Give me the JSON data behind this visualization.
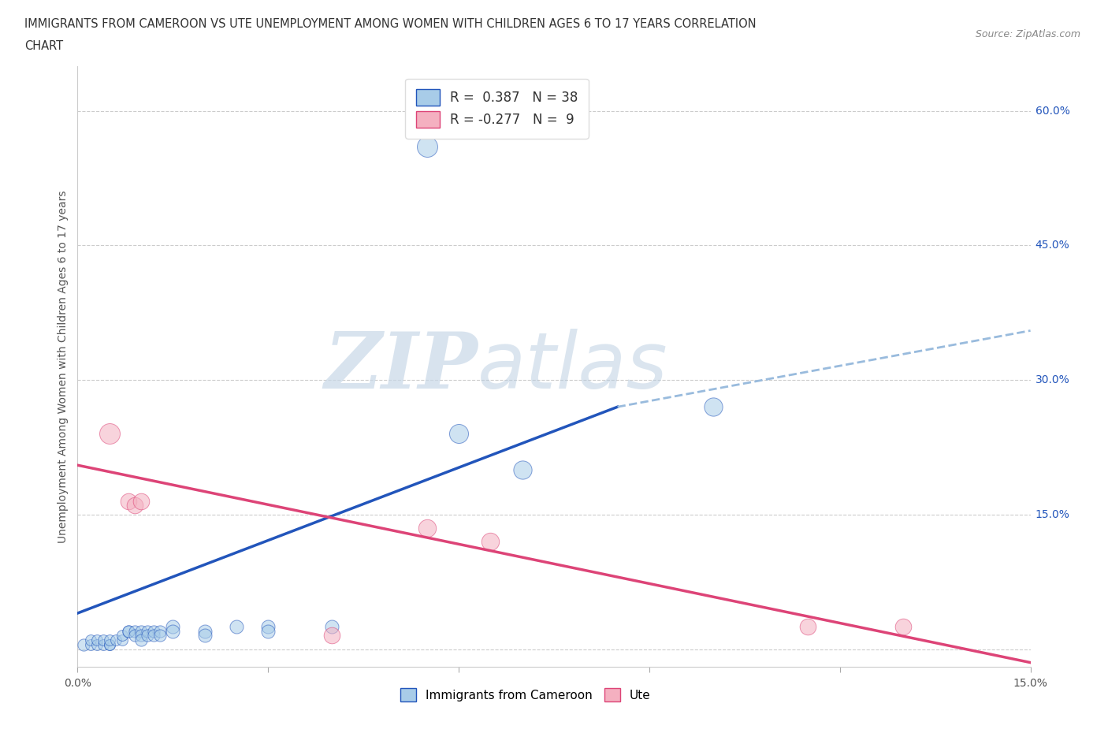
{
  "title_line1": "IMMIGRANTS FROM CAMEROON VS UTE UNEMPLOYMENT AMONG WOMEN WITH CHILDREN AGES 6 TO 17 YEARS CORRELATION",
  "title_line2": "CHART",
  "source": "Source: ZipAtlas.com",
  "ylabel": "Unemployment Among Women with Children Ages 6 to 17 years",
  "yticks": [
    0.0,
    0.15,
    0.3,
    0.45,
    0.6
  ],
  "ytick_labels": [
    "",
    "15.0%",
    "30.0%",
    "45.0%",
    "60.0%"
  ],
  "xlim": [
    0.0,
    0.15
  ],
  "ylim": [
    -0.02,
    0.65
  ],
  "legend_r_blue": "0.387",
  "legend_n_blue": "38",
  "legend_r_pink": "-0.277",
  "legend_n_pink": "9",
  "blue_color": "#a8cce8",
  "pink_color": "#f4b0c0",
  "blue_line_color": "#2255bb",
  "pink_line_color": "#dd4477",
  "dashed_line_color": "#99bbdd",
  "blue_line": {
    "x0": 0.0,
    "y0": 0.04,
    "x1": 0.085,
    "y1": 0.27
  },
  "dashed_line": {
    "x0": 0.085,
    "y0": 0.27,
    "x1": 0.15,
    "y1": 0.355
  },
  "pink_line": {
    "x0": 0.0,
    "y0": 0.205,
    "x1": 0.15,
    "y1": -0.015
  },
  "cameroon_points": [
    [
      0.001,
      0.005
    ],
    [
      0.002,
      0.005
    ],
    [
      0.002,
      0.01
    ],
    [
      0.003,
      0.005
    ],
    [
      0.003,
      0.01
    ],
    [
      0.004,
      0.005
    ],
    [
      0.004,
      0.01
    ],
    [
      0.005,
      0.005
    ],
    [
      0.005,
      0.005
    ],
    [
      0.005,
      0.01
    ],
    [
      0.006,
      0.01
    ],
    [
      0.007,
      0.01
    ],
    [
      0.007,
      0.015
    ],
    [
      0.008,
      0.02
    ],
    [
      0.008,
      0.02
    ],
    [
      0.009,
      0.02
    ],
    [
      0.009,
      0.015
    ],
    [
      0.01,
      0.02
    ],
    [
      0.01,
      0.015
    ],
    [
      0.01,
      0.01
    ],
    [
      0.011,
      0.02
    ],
    [
      0.011,
      0.015
    ],
    [
      0.012,
      0.02
    ],
    [
      0.012,
      0.015
    ],
    [
      0.013,
      0.02
    ],
    [
      0.013,
      0.015
    ],
    [
      0.015,
      0.025
    ],
    [
      0.015,
      0.02
    ],
    [
      0.02,
      0.02
    ],
    [
      0.02,
      0.015
    ],
    [
      0.025,
      0.025
    ],
    [
      0.03,
      0.025
    ],
    [
      0.03,
      0.02
    ],
    [
      0.04,
      0.025
    ],
    [
      0.055,
      0.56
    ],
    [
      0.06,
      0.24
    ],
    [
      0.07,
      0.2
    ],
    [
      0.1,
      0.27
    ]
  ],
  "cameroon_sizes": [
    120,
    100,
    100,
    100,
    100,
    100,
    100,
    100,
    100,
    100,
    100,
    100,
    100,
    120,
    120,
    120,
    120,
    120,
    120,
    120,
    120,
    120,
    120,
    120,
    120,
    120,
    150,
    150,
    150,
    150,
    150,
    150,
    150,
    150,
    350,
    300,
    280,
    280
  ],
  "ute_points": [
    [
      0.005,
      0.24
    ],
    [
      0.008,
      0.165
    ],
    [
      0.009,
      0.16
    ],
    [
      0.01,
      0.165
    ],
    [
      0.04,
      0.015
    ],
    [
      0.055,
      0.135
    ],
    [
      0.065,
      0.12
    ],
    [
      0.115,
      0.025
    ],
    [
      0.13,
      0.025
    ]
  ],
  "ute_sizes": [
    350,
    220,
    220,
    220,
    220,
    260,
    260,
    220,
    220
  ]
}
